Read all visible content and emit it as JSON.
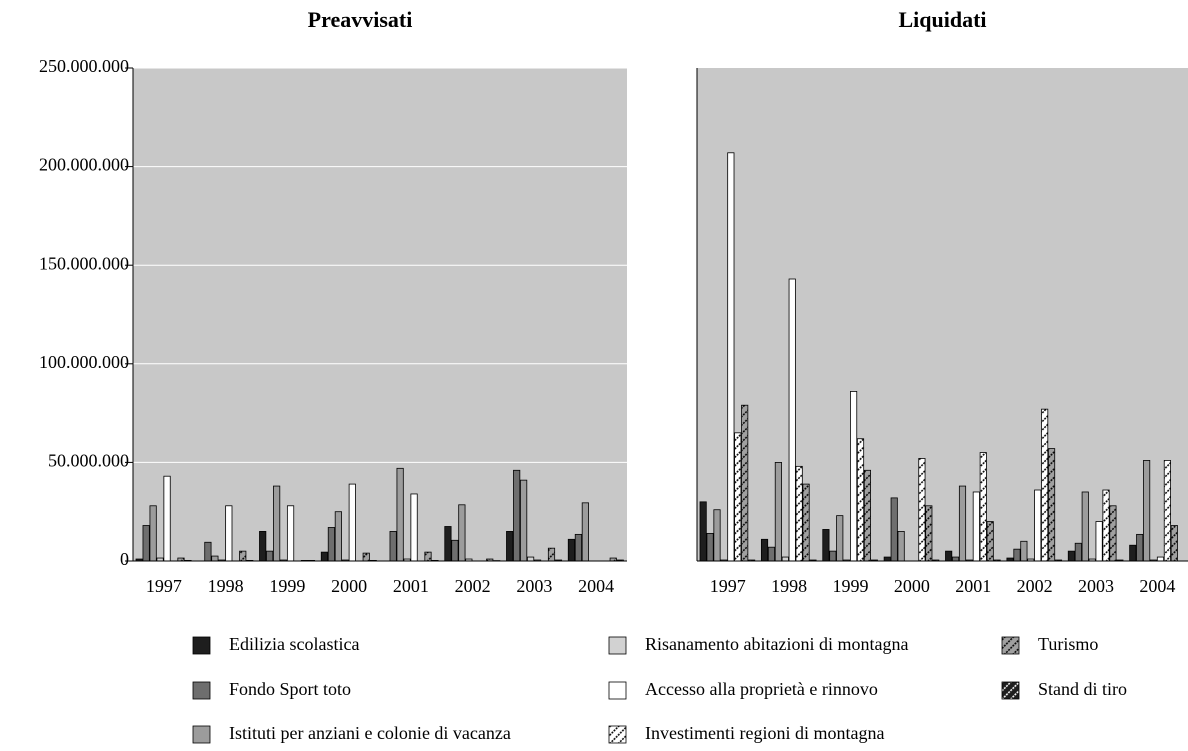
{
  "chart_data": [
    {
      "type": "bar",
      "title": "Preavvisati",
      "categories": [
        "1997",
        "1998",
        "1999",
        "2000",
        "2001",
        "2002",
        "2003",
        "2004"
      ],
      "ylim": [
        0,
        250000000
      ],
      "yticks": [
        0,
        {
          "value": 50000000,
          "label": "50.000.000"
        },
        {
          "value": 100000000,
          "label": "100.000.000"
        },
        {
          "value": 150000000,
          "label": "150.000.000"
        },
        {
          "value": 200000000,
          "label": "200.000.000"
        },
        {
          "value": 250000000,
          "label": "250.000.000"
        }
      ],
      "grid": true,
      "series": [
        {
          "name": "Edilizia scolastica",
          "color": "#1e1e1e",
          "hatched": false,
          "values": [
            1000000,
            0,
            15000000,
            4500000,
            0,
            17500000,
            15000000,
            11000000
          ]
        },
        {
          "name": "Fondo Sport toto",
          "color": "#6e6e6e",
          "hatched": false,
          "values": [
            18000000,
            9500000,
            5000000,
            17000000,
            15000000,
            10500000,
            46000000,
            13500000
          ]
        },
        {
          "name": "Istituti per anziani e colonie di vacanza",
          "color": "#9c9c9c",
          "hatched": false,
          "values": [
            28000000,
            2500000,
            38000000,
            25000000,
            47000000,
            28500000,
            41000000,
            29500000
          ]
        },
        {
          "name": "Risanamento abitazioni di montagna",
          "color": "#d2d2d2",
          "hatched": false,
          "values": [
            1500000,
            500000,
            500000,
            500000,
            1000000,
            1000000,
            2000000,
            0
          ]
        },
        {
          "name": "Accesso alla proprietà e rinnovo",
          "color": "#ffffff",
          "hatched": false,
          "values": [
            43000000,
            28000000,
            28000000,
            39000000,
            34000000,
            0,
            500000,
            0
          ]
        },
        {
          "name": "Investimenti regioni di montagna",
          "color": "#ffffff",
          "hatched": true,
          "values": [
            0,
            0,
            0,
            0,
            0,
            0,
            0,
            0
          ]
        },
        {
          "name": "Turismo",
          "color": "#a0a0a0",
          "hatched": true,
          "values": [
            1500000,
            5000000,
            300000,
            4000000,
            4500000,
            1000000,
            6500000,
            1500000
          ]
        },
        {
          "name": "Stand di tiro",
          "color": "#1e1e1e",
          "hatched": true,
          "values": [
            300000,
            300000,
            300000,
            300000,
            300000,
            200000,
            500000,
            500000
          ]
        }
      ]
    },
    {
      "type": "bar",
      "title": "Liquidati",
      "categories": [
        "1997",
        "1998",
        "1999",
        "2000",
        "2001",
        "2002",
        "2003",
        "2004"
      ],
      "ylim": [
        0,
        250000000
      ],
      "grid": false,
      "series": [
        {
          "name": "Edilizia scolastica",
          "color": "#1e1e1e",
          "hatched": false,
          "values": [
            30000000,
            11000000,
            16000000,
            2000000,
            5000000,
            1500000,
            5000000,
            8000000
          ]
        },
        {
          "name": "Fondo Sport toto",
          "color": "#6e6e6e",
          "hatched": false,
          "values": [
            14000000,
            7000000,
            5000000,
            32000000,
            2000000,
            6000000,
            9000000,
            13500000
          ]
        },
        {
          "name": "Istituti per anziani e colonie di vacanza",
          "color": "#9c9c9c",
          "hatched": false,
          "values": [
            26000000,
            50000000,
            23000000,
            15000000,
            38000000,
            10000000,
            35000000,
            51000000
          ]
        },
        {
          "name": "Risanamento abitazioni di montagna",
          "color": "#d2d2d2",
          "hatched": false,
          "values": [
            500000,
            2000000,
            500000,
            0,
            500000,
            1000000,
            1000000,
            500000
          ]
        },
        {
          "name": "Accesso alla proprietà e rinnovo",
          "color": "#ffffff",
          "hatched": false,
          "values": [
            207000000,
            143000000,
            86000000,
            0,
            35000000,
            36000000,
            20000000,
            2000000
          ]
        },
        {
          "name": "Investimenti regioni di montagna",
          "color": "#ffffff",
          "hatched": true,
          "values": [
            65000000,
            48000000,
            62000000,
            52000000,
            55000000,
            77000000,
            36000000,
            51000000
          ]
        },
        {
          "name": "Turismo",
          "color": "#a0a0a0",
          "hatched": true,
          "values": [
            79000000,
            39000000,
            46000000,
            28000000,
            20000000,
            57000000,
            28000000,
            18000000
          ]
        },
        {
          "name": "Stand di tiro",
          "color": "#1e1e1e",
          "hatched": true,
          "values": [
            500000,
            500000,
            500000,
            500000,
            500000,
            500000,
            500000,
            0
          ]
        }
      ]
    }
  ]
}
